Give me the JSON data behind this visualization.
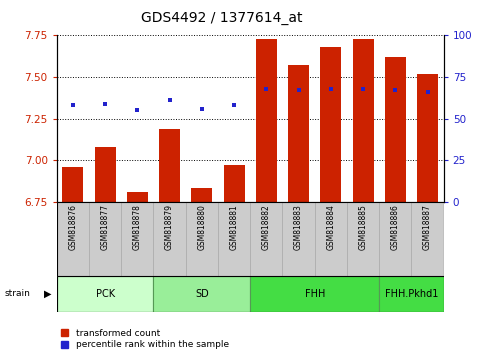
{
  "title": "GDS4492 / 1377614_at",
  "samples": [
    "GSM818876",
    "GSM818877",
    "GSM818878",
    "GSM818879",
    "GSM818880",
    "GSM818881",
    "GSM818882",
    "GSM818883",
    "GSM818884",
    "GSM818885",
    "GSM818886",
    "GSM818887"
  ],
  "bar_values": [
    6.96,
    7.08,
    6.81,
    7.19,
    6.83,
    6.97,
    7.73,
    7.57,
    7.68,
    7.73,
    7.62,
    7.52
  ],
  "blue_dot_values": [
    7.33,
    7.34,
    7.3,
    7.36,
    7.31,
    7.33,
    7.43,
    7.42,
    7.43,
    7.43,
    7.42,
    7.41
  ],
  "bar_color": "#cc2200",
  "dot_color": "#2222cc",
  "ylim_left": [
    6.75,
    7.75
  ],
  "ylim_right": [
    0,
    100
  ],
  "yticks_left": [
    6.75,
    7.0,
    7.25,
    7.5,
    7.75
  ],
  "yticks_right": [
    0,
    25,
    50,
    75,
    100
  ],
  "groups": [
    {
      "label": "PCK",
      "start": 0,
      "end": 2,
      "color": "#ccffcc"
    },
    {
      "label": "SD",
      "start": 3,
      "end": 5,
      "color": "#99ee99"
    },
    {
      "label": "FHH",
      "start": 6,
      "end": 9,
      "color": "#44dd44"
    },
    {
      "label": "FHH.Pkhd1",
      "start": 10,
      "end": 11,
      "color": "#44dd44"
    }
  ],
  "strain_label": "strain",
  "legend_red": "transformed count",
  "legend_blue": "percentile rank within the sample",
  "bar_bottom": 6.75,
  "tick_label_color_left": "#cc2200",
  "tick_label_color_right": "#2222cc",
  "xticklabel_bg": "#cccccc",
  "xticklabel_fontsize": 5.5,
  "group_border_color": "#559955",
  "group_fontsize": 7,
  "title_fontsize": 10,
  "legend_fontsize": 6.5
}
